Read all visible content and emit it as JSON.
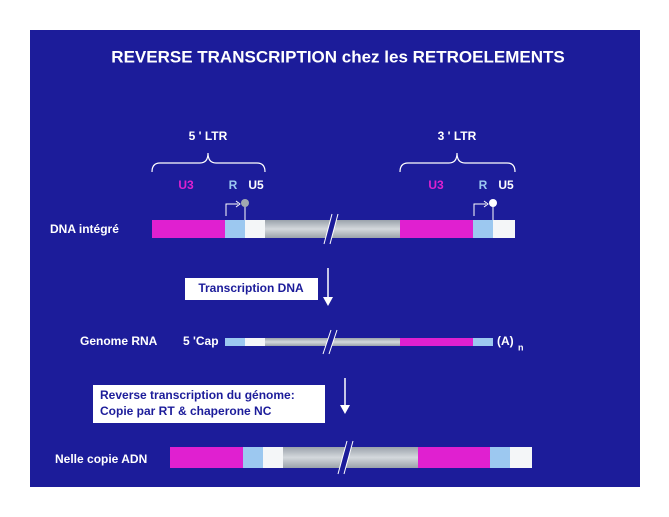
{
  "title": "REVERSE TRANSCRIPTION chez les RETROELEMENTS",
  "ltr": {
    "left": "5 ' LTR",
    "right": "3 ' LTR"
  },
  "segments": {
    "u3": "U3",
    "r": "R",
    "u5": "U5"
  },
  "rows": {
    "dna": "DNA intégré",
    "rna": "Genome RNA",
    "copy": "Nelle copie ADN"
  },
  "rna_ends": {
    "cap": "5 'Cap",
    "polya": "(A)",
    "polya_sub": "n"
  },
  "steps": {
    "transcription": "Transcription DNA",
    "reverse_line1": "Reverse transcription du génome:",
    "reverse_line2": "Copie par RT & chaperone NC"
  }
}
